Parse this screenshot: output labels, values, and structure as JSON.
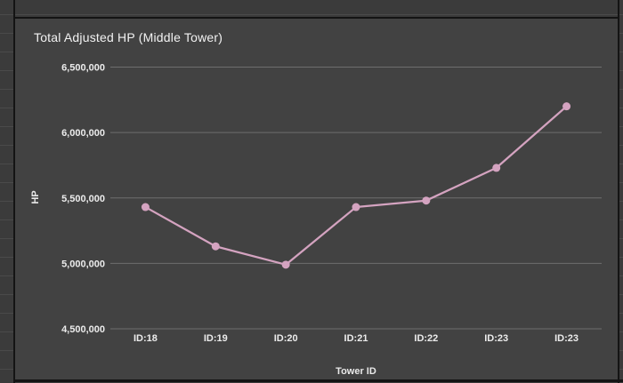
{
  "chart_data": {
    "type": "line",
    "title": "Total Adjusted HP (Middle Tower)",
    "xlabel": "Tower ID",
    "ylabel": "HP",
    "categories": [
      "ID:18",
      "ID:19",
      "ID:20",
      "ID:21",
      "ID:22",
      "ID:23",
      "ID:23"
    ],
    "values": [
      5430000,
      5130000,
      4990000,
      5430000,
      5480000,
      5730000,
      6200000
    ],
    "ylim": [
      4500000,
      6500000
    ],
    "yticks": [
      4500000,
      5000000,
      5500000,
      6000000,
      6500000
    ],
    "ytick_labels": [
      "4,500,000",
      "5,000,000",
      "5,500,000",
      "6,000,000",
      "6,500,000"
    ],
    "grid": "horizontal-only",
    "legend": "none",
    "colors": {
      "series": "#d4a3c0",
      "gridline": "#6e6e6e",
      "panel_background": "#424242",
      "page_background": "#3b3b3b",
      "text": "#ececec",
      "border": "#141414"
    }
  }
}
